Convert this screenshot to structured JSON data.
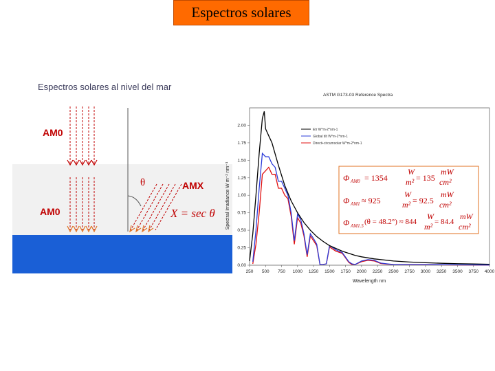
{
  "slide_title": "Espectros solares",
  "diagram": {
    "title": "Espectros solares al nivel del mar",
    "am0_top": "AM0",
    "am0_bottom": "AM0",
    "amx": "AMX",
    "theta": "θ",
    "formula": "X = sec θ",
    "colors": {
      "sky": "#f3f3f3",
      "sea": "#1a5fd6",
      "arrows": "#c00000"
    }
  },
  "chart_data": {
    "type": "line",
    "title": "ASTM G173-03 Reference Spectra",
    "xlabel": "Wavelength nm",
    "ylabel": "Spectral Irradiance W m⁻² nm⁻¹",
    "xlim": [
      250,
      4000
    ],
    "ylim": [
      0,
      2.25
    ],
    "x_ticks": [
      "250",
      "500",
      "750",
      "1000",
      "1250",
      "1500",
      "1750",
      "2000",
      "2250",
      "2500",
      "2750",
      "3000",
      "3250",
      "3500",
      "3750",
      "4000"
    ],
    "y_ticks": [
      "0.00",
      "0.25",
      "0.50",
      "0.75",
      "1.00",
      "1.25",
      "1.50",
      "1.75",
      "2.00"
    ],
    "legend": [
      "Etr W*m-2*nm-1",
      "Global tilt W*m-2*nm-1",
      "Direct+circumsolar W*m-2*nm-1"
    ],
    "legend_placement": "top-right",
    "series": [
      {
        "name": "Etr W*m-2*nm-1",
        "color": "#000000",
        "x": [
          250,
          300,
          350,
          400,
          450,
          480,
          500,
          550,
          600,
          700,
          800,
          900,
          1000,
          1100,
          1200,
          1300,
          1400,
          1500,
          1600,
          1700,
          1800,
          1900,
          2000,
          2200,
          2500,
          2750,
          3000,
          3250,
          3500,
          3750,
          4000
        ],
        "y": [
          0.06,
          0.45,
          1.0,
          1.6,
          2.1,
          2.2,
          1.95,
          1.85,
          1.75,
          1.43,
          1.14,
          0.92,
          0.75,
          0.61,
          0.5,
          0.41,
          0.34,
          0.28,
          0.24,
          0.2,
          0.17,
          0.14,
          0.12,
          0.09,
          0.06,
          0.045,
          0.035,
          0.028,
          0.022,
          0.018,
          0.014
        ]
      },
      {
        "name": "Global tilt W*m-2*nm-1",
        "color": "#2b3bd9",
        "x": [
          300,
          350,
          400,
          450,
          500,
          550,
          600,
          650,
          700,
          750,
          800,
          850,
          900,
          950,
          1000,
          1050,
          1100,
          1150,
          1200,
          1250,
          1300,
          1350,
          1400,
          1450,
          1500,
          1600,
          1700,
          1800,
          1850,
          1900,
          2000,
          2100,
          2200,
          2300,
          2400,
          2500,
          2750,
          3000,
          3500,
          4000
        ],
        "y": [
          0.05,
          0.5,
          1.1,
          1.6,
          1.55,
          1.55,
          1.45,
          1.4,
          1.2,
          1.2,
          1.1,
          1.0,
          0.75,
          0.35,
          0.73,
          0.65,
          0.45,
          0.15,
          0.45,
          0.38,
          0.3,
          0.01,
          0.01,
          0.02,
          0.28,
          0.22,
          0.18,
          0.05,
          0.02,
          0.01,
          0.06,
          0.08,
          0.07,
          0.03,
          0.02,
          0.01,
          0.01,
          0.01,
          0.005,
          0.003
        ]
      },
      {
        "name": "Direct+circumsolar W*m-2*nm-1",
        "color": "#e01010",
        "x": [
          300,
          350,
          400,
          450,
          500,
          550,
          600,
          650,
          700,
          750,
          800,
          850,
          900,
          950,
          1000,
          1050,
          1100,
          1150,
          1200,
          1250,
          1300,
          1350,
          1400,
          1450,
          1500,
          1600,
          1700,
          1800,
          1850,
          1900,
          2000,
          2100,
          2200,
          2300,
          2400,
          2500,
          2750,
          3000,
          3500,
          4000
        ],
        "y": [
          0.02,
          0.3,
          0.75,
          1.3,
          1.35,
          1.4,
          1.3,
          1.3,
          1.1,
          1.1,
          1.0,
          0.95,
          0.7,
          0.3,
          0.68,
          0.6,
          0.42,
          0.12,
          0.42,
          0.35,
          0.28,
          0.01,
          0.01,
          0.02,
          0.26,
          0.2,
          0.17,
          0.04,
          0.01,
          0.01,
          0.05,
          0.07,
          0.06,
          0.025,
          0.015,
          0.01,
          0.008,
          0.008,
          0.004,
          0.002
        ]
      }
    ]
  },
  "equations": {
    "eq1": "Φ_AM0 = 1354 W/m² = 135 mW/cm²",
    "eq2": "Φ_AM1 ≈ 925 W/m² = 92.5 mW/cm²",
    "eq3": "Φ_AM1.5(θ = 48.2°) ≈ 844 W/m² = 84.4 mW/cm²",
    "phi": "Φ",
    "sub_am0": "AM0",
    "sub_am1": "AM1",
    "sub_am15": "AM1.5",
    "v1": "= 1354",
    "v2": "≈ 925",
    "v3": "(θ = 48.2°) ≈ 844",
    "w_num": "W",
    "w_den": "m²",
    "mw_num": "mW",
    "mw_den": "cm²",
    "r1": "= 135",
    "r2": "= 92.5",
    "r3": "= 84.4"
  }
}
